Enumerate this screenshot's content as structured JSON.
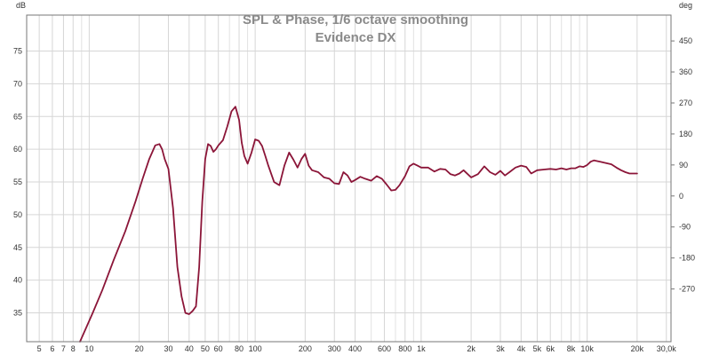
{
  "chart_data": {
    "type": "line",
    "title": "SPL & Phase, 1/6 octave smoothing",
    "subtitle": "Evidence DX",
    "ylabel": "dB",
    "y2label": "deg",
    "xscale": "log",
    "xlim": [
      4.2,
      32000
    ],
    "ylim": [
      30.6,
      80.5
    ],
    "y2lim": [
      -423,
      525
    ],
    "grid": true,
    "x_ticks": [
      {
        "v": 5,
        "label": "5"
      },
      {
        "v": 6,
        "label": "6"
      },
      {
        "v": 7,
        "label": "7"
      },
      {
        "v": 8,
        "label": "8"
      },
      {
        "v": 10,
        "label": "10"
      },
      {
        "v": 20,
        "label": "20"
      },
      {
        "v": 30,
        "label": "30"
      },
      {
        "v": 40,
        "label": "40"
      },
      {
        "v": 50,
        "label": "50"
      },
      {
        "v": 60,
        "label": "60"
      },
      {
        "v": 80,
        "label": "80"
      },
      {
        "v": 100,
        "label": "100"
      },
      {
        "v": 200,
        "label": "200"
      },
      {
        "v": 300,
        "label": "300"
      },
      {
        "v": 400,
        "label": "400"
      },
      {
        "v": 600,
        "label": "600"
      },
      {
        "v": 800,
        "label": "800"
      },
      {
        "v": 1000,
        "label": "1k"
      },
      {
        "v": 2000,
        "label": "2k"
      },
      {
        "v": 3000,
        "label": "3k"
      },
      {
        "v": 4000,
        "label": "4k"
      },
      {
        "v": 5000,
        "label": "5k"
      },
      {
        "v": 6000,
        "label": "6k"
      },
      {
        "v": 8000,
        "label": "8k"
      },
      {
        "v": 10000,
        "label": "10k"
      },
      {
        "v": 20000,
        "label": "20k"
      },
      {
        "v": 30000,
        "label": "30,0k"
      }
    ],
    "x_minor": [
      9,
      70,
      90,
      500,
      700,
      900,
      7000,
      9000
    ],
    "y_ticks": [
      35,
      40,
      45,
      50,
      55,
      60,
      65,
      70,
      75
    ],
    "y2_ticks": [
      -270,
      -180,
      -90,
      0,
      90,
      180,
      270,
      360,
      450
    ],
    "series": [
      {
        "color": "#8b1538",
        "x": [
          8.8,
          9.5,
          10.5,
          12,
          14,
          16.5,
          19,
          21,
          23,
          25,
          26.5,
          27.5,
          28.5,
          30,
          32,
          34,
          36,
          38,
          40,
          42,
          44,
          46,
          48,
          50,
          52,
          54,
          56,
          58,
          60,
          64,
          68,
          72,
          76,
          80,
          83,
          86,
          90,
          95,
          100,
          105,
          110,
          115,
          120,
          130,
          140,
          150,
          160,
          170,
          180,
          190,
          200,
          210,
          220,
          240,
          260,
          280,
          300,
          320,
          340,
          360,
          380,
          400,
          430,
          460,
          500,
          540,
          580,
          620,
          660,
          700,
          740,
          800,
          850,
          900,
          950,
          1000,
          1100,
          1200,
          1300,
          1400,
          1500,
          1600,
          1700,
          1800,
          2000,
          2200,
          2400,
          2600,
          2800,
          3000,
          3200,
          3400,
          3700,
          4000,
          4300,
          4600,
          5000,
          5500,
          6000,
          6500,
          7000,
          7500,
          8000,
          8500,
          9000,
          9500,
          10000,
          10500,
          11000,
          12000,
          13000,
          14000,
          15000,
          16000,
          17000,
          18000,
          19000,
          20000
        ],
        "y": [
          30.6,
          32.5,
          35,
          38.5,
          43,
          47.5,
          52,
          55.5,
          58.5,
          60.6,
          60.8,
          60,
          58.5,
          57,
          51,
          42,
          37.5,
          35,
          34.8,
          35.3,
          36,
          42,
          52,
          58.5,
          60.8,
          60.5,
          59.6,
          60,
          60.6,
          61.4,
          63.5,
          65.8,
          66.5,
          64.5,
          61,
          59,
          57.8,
          59.5,
          61.5,
          61.3,
          60.5,
          59,
          57.5,
          55,
          54.5,
          57.5,
          59.5,
          58.4,
          57.2,
          58.5,
          59.3,
          57.5,
          56.8,
          56.5,
          55.7,
          55.5,
          54.8,
          54.7,
          56.5,
          56,
          55,
          55.3,
          55.8,
          55.5,
          55.2,
          55.9,
          55.5,
          54.6,
          53.7,
          53.8,
          54.5,
          55.9,
          57.4,
          57.8,
          57.5,
          57.2,
          57.2,
          56.6,
          57,
          56.9,
          56.2,
          56,
          56.3,
          56.8,
          55.7,
          56.2,
          57.4,
          56.5,
          56.1,
          56.7,
          56,
          56.5,
          57.2,
          57.5,
          57.3,
          56.3,
          56.8,
          56.9,
          57,
          56.9,
          57.1,
          56.9,
          57.1,
          57.1,
          57.4,
          57.3,
          57.6,
          58.1,
          58.3,
          58.1,
          57.9,
          57.7,
          57.2,
          56.8,
          56.5,
          56.3,
          56.3,
          56.3
        ]
      }
    ]
  }
}
